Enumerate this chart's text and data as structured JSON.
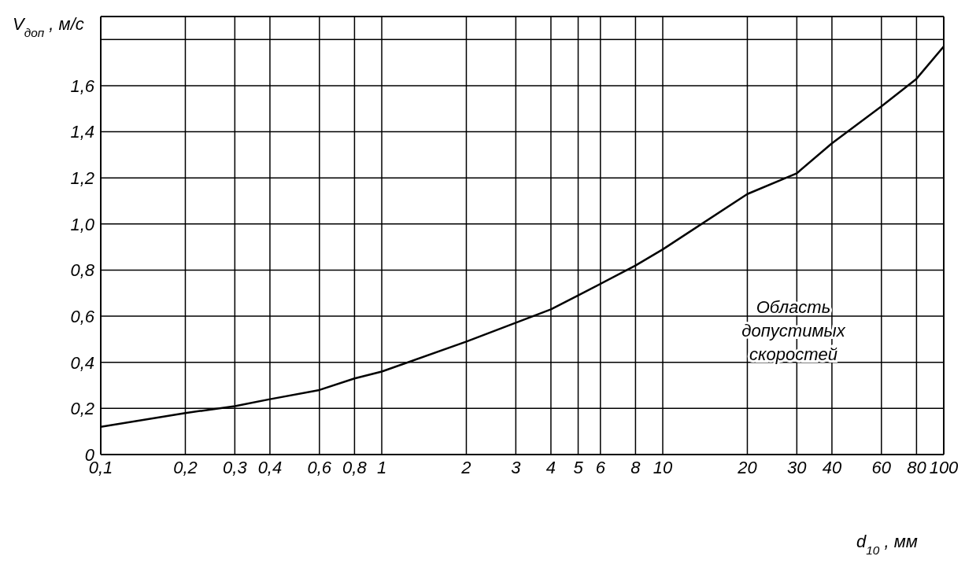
{
  "chart_data": {
    "type": "line",
    "xlabel": "d$_{10}$, мм",
    "ylabel": "V$_{доп}$, м/с",
    "log": "x",
    "x": [
      0.1,
      0.2,
      0.3,
      0.4,
      0.6,
      0.8,
      1,
      2,
      4,
      5,
      8,
      10,
      20,
      30,
      40,
      60,
      80,
      100
    ],
    "series": [
      {
        "color": "#000000",
        "values": [
          0.12,
          0.18,
          0.21,
          0.24,
          0.28,
          0.33,
          0.36,
          0.49,
          0.63,
          0.69,
          0.82,
          0.89,
          1.13,
          1.22,
          1.35,
          1.51,
          1.63,
          1.77
        ]
      }
    ],
    "xlim": [
      0.1,
      100
    ],
    "xticks": [
      {
        "value": 0.1,
        "label": "0,1"
      },
      {
        "value": 0.2,
        "label": "0,2"
      },
      {
        "value": 0.3,
        "label": "0,3"
      },
      {
        "value": 0.4,
        "label": "0,4"
      },
      {
        "value": 0.6,
        "label": "0,6"
      },
      {
        "value": 0.8,
        "label": "0,8"
      },
      1,
      2,
      3,
      4,
      5,
      6,
      8,
      10,
      20,
      30,
      40,
      60,
      80,
      100
    ],
    "ylim": [
      0,
      1.9
    ],
    "yticks": [
      0,
      {
        "value": 0.2,
        "label": "0,2"
      },
      {
        "value": 0.4,
        "label": "0,4"
      },
      {
        "value": 0.6,
        "label": "0,6"
      },
      {
        "value": 0.8,
        "label": "0,8"
      },
      {
        "value": 1.0,
        "label": "1,0"
      },
      {
        "value": 1.2,
        "label": "1,2"
      },
      {
        "value": 1.4,
        "label": "1,4"
      },
      {
        "value": 1.6,
        "label": "1,6"
      },
      {
        "value": 1.8,
        "label": null
      }
    ],
    "grid": true,
    "marker": "none",
    "line_style": "solid",
    "legend": false,
    "annotations": [
      "Область допустимых скоростей"
    ]
  }
}
